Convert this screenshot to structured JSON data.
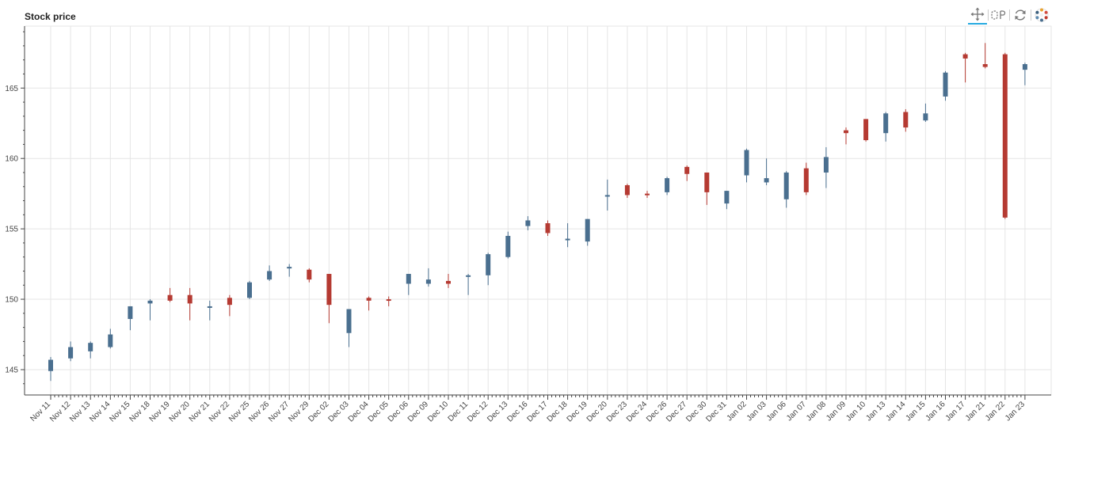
{
  "chart_data": {
    "type": "candlestick",
    "title": "Stock price",
    "xlabel": "",
    "ylabel": "",
    "ylim": [
      143.2,
      169.4
    ],
    "yticks": [
      145,
      150,
      155,
      160,
      165
    ],
    "grid": true,
    "legend": "none",
    "colors": {
      "increasing": "#4a6f8f",
      "decreasing": "#b53a32"
    },
    "categories": [
      "Nov 11",
      "Nov 12",
      "Nov 13",
      "Nov 14",
      "Nov 15",
      "Nov 18",
      "Nov 19",
      "Nov 20",
      "Nov 21",
      "Nov 22",
      "Nov 25",
      "Nov 26",
      "Nov 27",
      "Nov 29",
      "Dec 02",
      "Dec 03",
      "Dec 04",
      "Dec 05",
      "Dec 06",
      "Dec 09",
      "Dec 10",
      "Dec 11",
      "Dec 12",
      "Dec 13",
      "Dec 16",
      "Dec 17",
      "Dec 18",
      "Dec 19",
      "Dec 20",
      "Dec 23",
      "Dec 24",
      "Dec 26",
      "Dec 27",
      "Dec 30",
      "Dec 31",
      "Jan 02",
      "Jan 03",
      "Jan 06",
      "Jan 07",
      "Jan 08",
      "Jan 09",
      "Jan 10",
      "Jan 13",
      "Jan 14",
      "Jan 15",
      "Jan 16",
      "Jan 17",
      "Jan 21",
      "Jan 22",
      "Jan 23"
    ],
    "open": [
      144.9,
      145.8,
      146.3,
      146.6,
      148.6,
      149.7,
      150.3,
      150.3,
      149.5,
      150.1,
      150.1,
      151.4,
      152.3,
      152.1,
      151.8,
      147.6,
      150.1,
      150.0,
      151.1,
      151.1,
      151.3,
      151.6,
      151.7,
      153.0,
      155.2,
      155.4,
      154.3,
      154.1,
      157.4,
      158.1,
      157.5,
      157.6,
      159.4,
      159.0,
      156.8,
      158.8,
      158.3,
      157.1,
      159.3,
      159.0,
      162.0,
      162.8,
      161.8,
      163.3,
      162.7,
      164.4,
      167.4,
      166.7,
      167.4,
      166.3
    ],
    "close": [
      145.7,
      146.6,
      146.9,
      147.5,
      149.5,
      149.9,
      149.9,
      149.7,
      149.5,
      149.6,
      151.2,
      152.0,
      152.3,
      151.4,
      149.6,
      149.3,
      149.9,
      149.9,
      151.8,
      151.4,
      151.1,
      151.7,
      153.2,
      154.5,
      155.6,
      154.7,
      154.3,
      155.7,
      157.4,
      157.4,
      157.4,
      158.6,
      158.9,
      157.6,
      157.7,
      160.6,
      158.6,
      159.0,
      157.6,
      160.1,
      161.8,
      161.3,
      163.2,
      162.2,
      163.2,
      166.1,
      167.1,
      166.5,
      155.8,
      166.7
    ],
    "high": [
      145.9,
      147.0,
      147.0,
      147.9,
      149.5,
      150.0,
      150.8,
      150.8,
      149.9,
      150.3,
      151.3,
      152.4,
      152.5,
      152.2,
      151.8,
      149.3,
      150.2,
      150.2,
      151.8,
      152.2,
      151.8,
      151.8,
      153.3,
      154.8,
      155.9,
      155.6,
      155.4,
      155.7,
      158.5,
      158.2,
      157.7,
      158.7,
      159.5,
      159.0,
      157.7,
      160.7,
      160.0,
      159.1,
      159.7,
      160.8,
      162.2,
      162.8,
      163.3,
      163.5,
      163.9,
      166.2,
      167.5,
      168.2,
      167.5,
      166.8
    ],
    "low": [
      144.2,
      145.6,
      145.8,
      146.5,
      147.8,
      148.5,
      149.8,
      148.5,
      148.5,
      148.8,
      150.0,
      151.3,
      151.6,
      151.2,
      148.3,
      146.6,
      149.2,
      149.5,
      150.3,
      150.9,
      150.8,
      150.3,
      151.0,
      152.9,
      154.9,
      154.5,
      153.7,
      153.8,
      156.3,
      157.2,
      157.2,
      157.4,
      158.4,
      156.7,
      156.4,
      158.3,
      158.1,
      156.5,
      157.4,
      157.9,
      161.0,
      161.2,
      161.2,
      161.9,
      162.6,
      164.1,
      165.4,
      166.4,
      155.7,
      165.2
    ]
  },
  "title": "Stock price",
  "toolbar": {
    "tools": [
      {
        "name": "pan-tool",
        "icon": "move-arrows-icon",
        "active": true
      },
      {
        "name": "box-zoom-tool",
        "icon": "box-zoom-icon",
        "active": false
      },
      {
        "name": "reset-tool",
        "icon": "reset-icon",
        "active": false
      },
      {
        "name": "bokeh-logo",
        "icon": "bokeh-logo-icon",
        "active": false
      }
    ]
  }
}
